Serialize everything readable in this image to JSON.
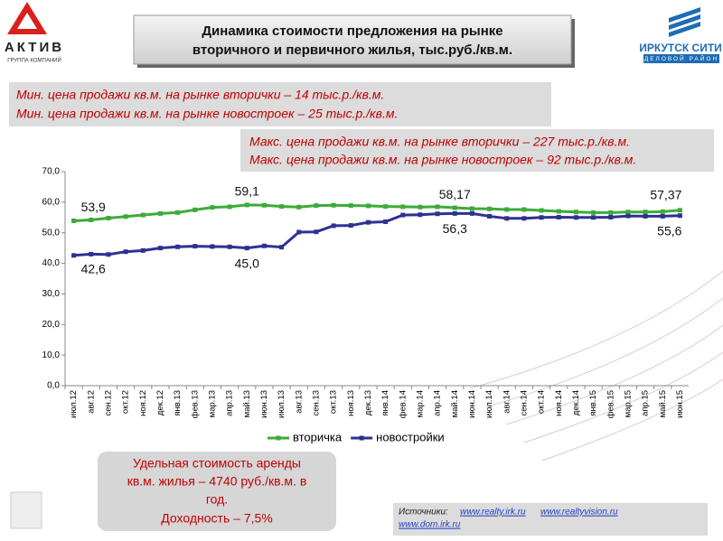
{
  "logos": {
    "left": "АКТИВ",
    "left_sub": "ГРУППА КОМПАНИЙ",
    "right": "ИРКУТСК СИТИ",
    "right_sub": "ДЕЛОВОЙ РАЙОН"
  },
  "notes": {
    "min": [
      "Мин. цена продажи кв.м. на рынке вторички – 14 тыс.р./кв.м.",
      "Мин. цена продажи кв.м. на рынке новостроек – 25 тыс.р./кв.м."
    ],
    "max": [
      "Макс. цена продажи кв.м. на рынке вторички – 227 тыс.р./кв.м.",
      "Макс. цена продажи кв.м. на рынке новостроек – 92 тыс.р./кв.м."
    ],
    "rent": [
      "Удельная стоимость аренды",
      "кв.м. жилья – 4740 руб./кв.м. в",
      "год.",
      "Доходность – 7,5%"
    ]
  },
  "sources": {
    "label": "Источники:",
    "links": [
      "www.realty.irk.ru",
      "www.realtyvision.ru",
      "www.dom.irk.ru"
    ]
  },
  "chart_data": {
    "type": "line",
    "title": [
      "Динамика стоимости предложения на рынке",
      "вторичного и первичного жилья, тыс.руб./кв.м."
    ],
    "categories": [
      "июл.12",
      "авг.12",
      "сен.12",
      "окт.12",
      "ноя.12",
      "дек.12",
      "янв.13",
      "фев.13",
      "мар.13",
      "апр.13",
      "май.13",
      "июн.13",
      "июл.13",
      "авг.13",
      "сен.13",
      "окт.13",
      "ноя.13",
      "дек.13",
      "янв.14",
      "фев.14",
      "мар.14",
      "апр.14",
      "май.14",
      "июн.14",
      "июл.14",
      "авг.14",
      "сен.14",
      "окт.14",
      "ноя.14",
      "дек.14",
      "янв.15",
      "фев.15",
      "мар.15",
      "апр.15",
      "май.15",
      "июн.15"
    ],
    "series": [
      {
        "name": "вторичка",
        "color": "#3dab3a",
        "values": [
          53.9,
          54.2,
          54.8,
          55.3,
          55.8,
          56.3,
          56.6,
          57.5,
          58.3,
          58.5,
          59.1,
          59.0,
          58.6,
          58.4,
          58.9,
          59.0,
          58.9,
          58.8,
          58.6,
          58.5,
          58.4,
          58.5,
          58.17,
          57.9,
          57.8,
          57.6,
          57.6,
          57.3,
          57.0,
          56.8,
          56.6,
          56.6,
          56.8,
          56.8,
          56.9,
          57.37
        ],
        "value_labels": [
          "53,9",
          null,
          null,
          null,
          null,
          null,
          null,
          null,
          null,
          null,
          "59,1",
          null,
          null,
          null,
          null,
          null,
          null,
          null,
          null,
          null,
          null,
          null,
          "58,17",
          null,
          null,
          null,
          null,
          null,
          null,
          null,
          null,
          null,
          null,
          null,
          null,
          "57,37"
        ]
      },
      {
        "name": "новостройки",
        "color": "#2e3192",
        "values": [
          42.6,
          43.0,
          42.9,
          43.8,
          44.2,
          45.0,
          45.4,
          45.6,
          45.5,
          45.4,
          45.0,
          45.7,
          45.3,
          50.2,
          50.3,
          52.3,
          52.4,
          53.4,
          53.6,
          55.8,
          55.9,
          56.2,
          56.3,
          56.3,
          55.4,
          54.7,
          54.7,
          55.0,
          55.1,
          55.0,
          55.0,
          55.1,
          55.5,
          55.4,
          55.4,
          55.6
        ],
        "value_labels": [
          "42,6",
          null,
          null,
          null,
          null,
          null,
          null,
          null,
          null,
          null,
          "45,0",
          null,
          null,
          null,
          null,
          null,
          null,
          null,
          null,
          null,
          null,
          null,
          "56,3",
          null,
          null,
          null,
          null,
          null,
          null,
          null,
          null,
          null,
          null,
          null,
          null,
          "55,6"
        ]
      }
    ],
    "ylim": [
      0,
      70
    ],
    "yticks": [
      {
        "value": 0,
        "label": "0,0"
      },
      {
        "value": 10,
        "label": "10,0"
      },
      {
        "value": 20,
        "label": "20,0"
      },
      {
        "value": 30,
        "label": "30,0"
      },
      {
        "value": 40,
        "label": "40,0"
      },
      {
        "value": 50,
        "label": "50,0"
      },
      {
        "value": 60,
        "label": "60,0"
      },
      {
        "value": 70,
        "label": "70,0"
      }
    ],
    "legend": "bottom"
  }
}
